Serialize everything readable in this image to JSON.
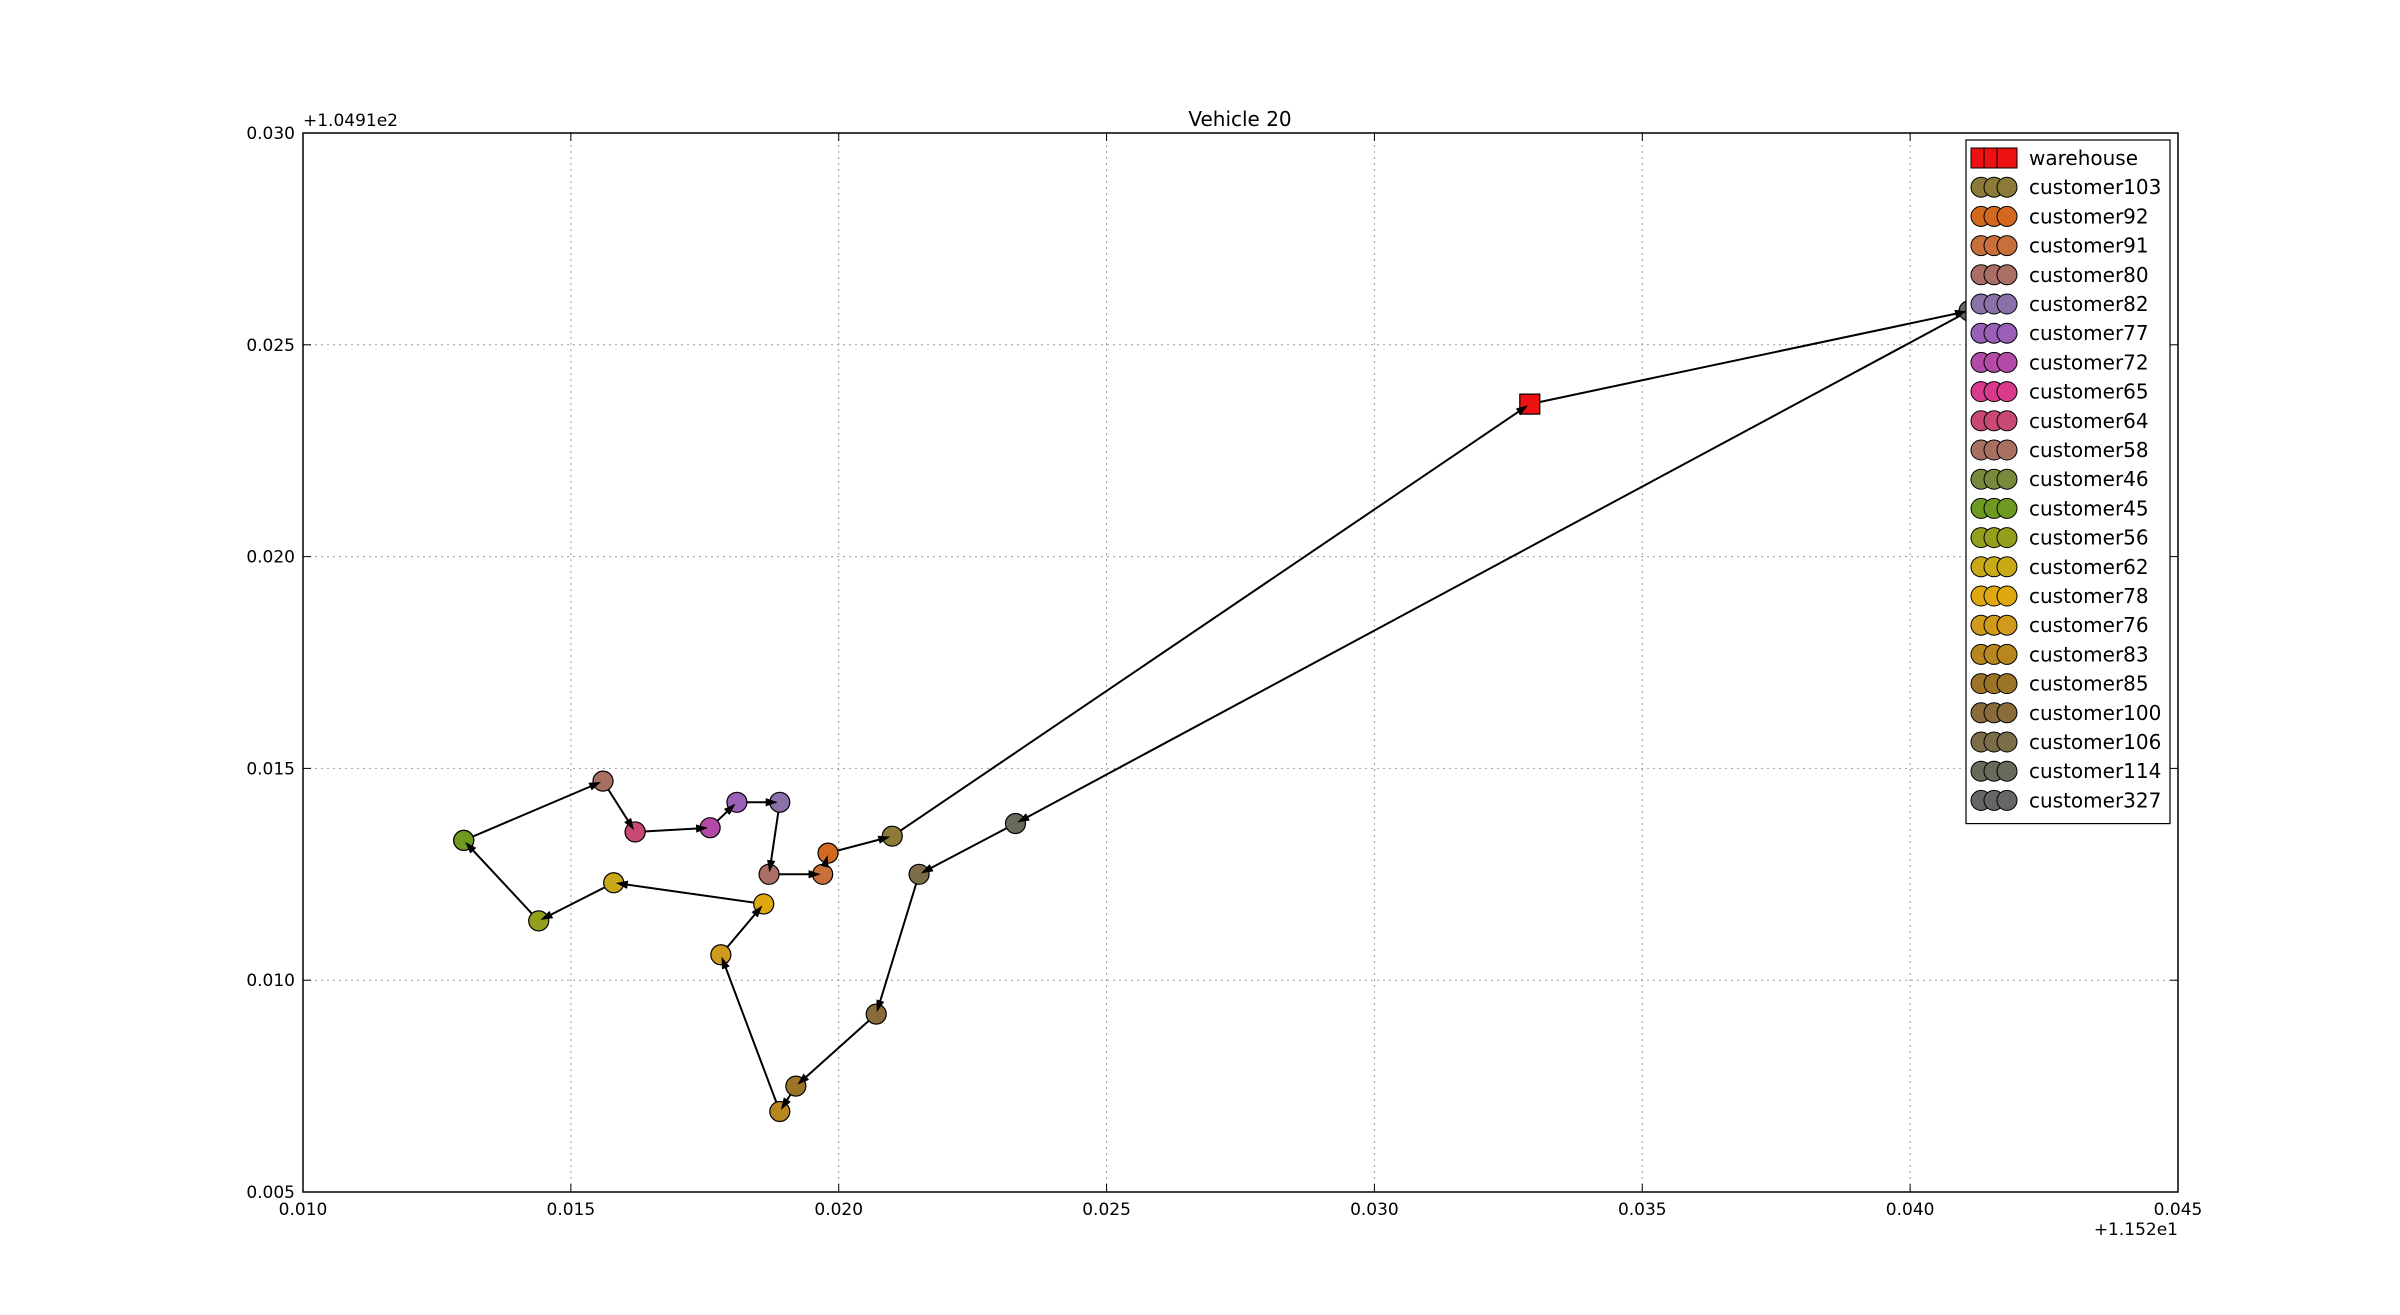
{
  "chart_data": {
    "type": "scatter",
    "title": "Vehicle 20",
    "xlabel": "",
    "ylabel": "",
    "x_offset_label": "+1.152e1",
    "y_offset_label": "+1.0491e2",
    "xlim": [
      0.01,
      0.045
    ],
    "ylim": [
      0.005,
      0.03
    ],
    "x_ticks": [
      "0.010",
      "0.015",
      "0.020",
      "0.025",
      "0.030",
      "0.035",
      "0.040",
      "0.045"
    ],
    "y_ticks": [
      "0.005",
      "0.010",
      "0.015",
      "0.020",
      "0.025",
      "0.030"
    ],
    "grid": true,
    "legend_position": "top-right",
    "route_color": "#000000",
    "series": [
      {
        "name": "warehouse",
        "marker": "square",
        "color": "#ee1111",
        "x": 0.0329,
        "y": 0.0236
      },
      {
        "name": "customer103",
        "marker": "circle",
        "color": "#8c7a38",
        "x": 0.021,
        "y": 0.0134
      },
      {
        "name": "customer92",
        "marker": "circle",
        "color": "#d2691e",
        "x": 0.0198,
        "y": 0.013
      },
      {
        "name": "customer91",
        "marker": "circle",
        "color": "#c8703c",
        "x": 0.0197,
        "y": 0.0125
      },
      {
        "name": "customer80",
        "marker": "circle",
        "color": "#aa6e66",
        "x": 0.0187,
        "y": 0.0125
      },
      {
        "name": "customer82",
        "marker": "circle",
        "color": "#8c70aa",
        "x": 0.0189,
        "y": 0.0142
      },
      {
        "name": "customer77",
        "marker": "circle",
        "color": "#9a5fb8",
        "x": 0.0181,
        "y": 0.0142
      },
      {
        "name": "customer72",
        "marker": "circle",
        "color": "#b44aa8",
        "x": 0.0176,
        "y": 0.0136
      },
      {
        "name": "customer65",
        "marker": "circle",
        "color": "#d83a8c",
        "x": 0.0162,
        "y": 0.0135
      },
      {
        "name": "customer64",
        "marker": "circle",
        "color": "#c84a74",
        "x": 0.0162,
        "y": 0.0135
      },
      {
        "name": "customer58",
        "marker": "circle",
        "color": "#a87060",
        "x": 0.0156,
        "y": 0.0147
      },
      {
        "name": "customer46",
        "marker": "circle",
        "color": "#7a8a3c",
        "x": 0.013,
        "y": 0.0133
      },
      {
        "name": "customer45",
        "marker": "circle",
        "color": "#6e9a22",
        "x": 0.013,
        "y": 0.0133
      },
      {
        "name": "customer56",
        "marker": "circle",
        "color": "#94a01c",
        "x": 0.0144,
        "y": 0.0114
      },
      {
        "name": "customer62",
        "marker": "circle",
        "color": "#c8aa18",
        "x": 0.0158,
        "y": 0.0123
      },
      {
        "name": "customer78",
        "marker": "circle",
        "color": "#e0a810",
        "x": 0.0186,
        "y": 0.0118
      },
      {
        "name": "customer76",
        "marker": "circle",
        "color": "#d09a1c",
        "x": 0.0178,
        "y": 0.0106
      },
      {
        "name": "customer83",
        "marker": "circle",
        "color": "#b8861e",
        "x": 0.0189,
        "y": 0.0069
      },
      {
        "name": "customer85",
        "marker": "circle",
        "color": "#9c7428",
        "x": 0.0192,
        "y": 0.0075
      },
      {
        "name": "customer100",
        "marker": "circle",
        "color": "#8a6c3a",
        "x": 0.0207,
        "y": 0.0092
      },
      {
        "name": "customer106",
        "marker": "circle",
        "color": "#7c6c48",
        "x": 0.0215,
        "y": 0.0125
      },
      {
        "name": "customer114",
        "marker": "circle",
        "color": "#6a6a5a",
        "x": 0.0233,
        "y": 0.0137
      },
      {
        "name": "customer327",
        "marker": "circle",
        "color": "#666666",
        "x": 0.0411,
        "y": 0.0258
      }
    ],
    "route": [
      [
        0.0329,
        0.0236
      ],
      [
        0.0411,
        0.0258
      ],
      [
        0.0233,
        0.0137
      ],
      [
        0.0215,
        0.0125
      ],
      [
        0.0207,
        0.0092
      ],
      [
        0.0192,
        0.0075
      ],
      [
        0.0189,
        0.0069
      ],
      [
        0.0178,
        0.0106
      ],
      [
        0.0186,
        0.0118
      ],
      [
        0.0158,
        0.0123
      ],
      [
        0.0144,
        0.0114
      ],
      [
        0.013,
        0.0133
      ],
      [
        0.0156,
        0.0147
      ],
      [
        0.0162,
        0.0135
      ],
      [
        0.0176,
        0.0136
      ],
      [
        0.0181,
        0.0142
      ],
      [
        0.0189,
        0.0142
      ],
      [
        0.0187,
        0.0125
      ],
      [
        0.0197,
        0.0125
      ],
      [
        0.0198,
        0.013
      ],
      [
        0.021,
        0.0134
      ],
      [
        0.0329,
        0.0236
      ]
    ]
  }
}
